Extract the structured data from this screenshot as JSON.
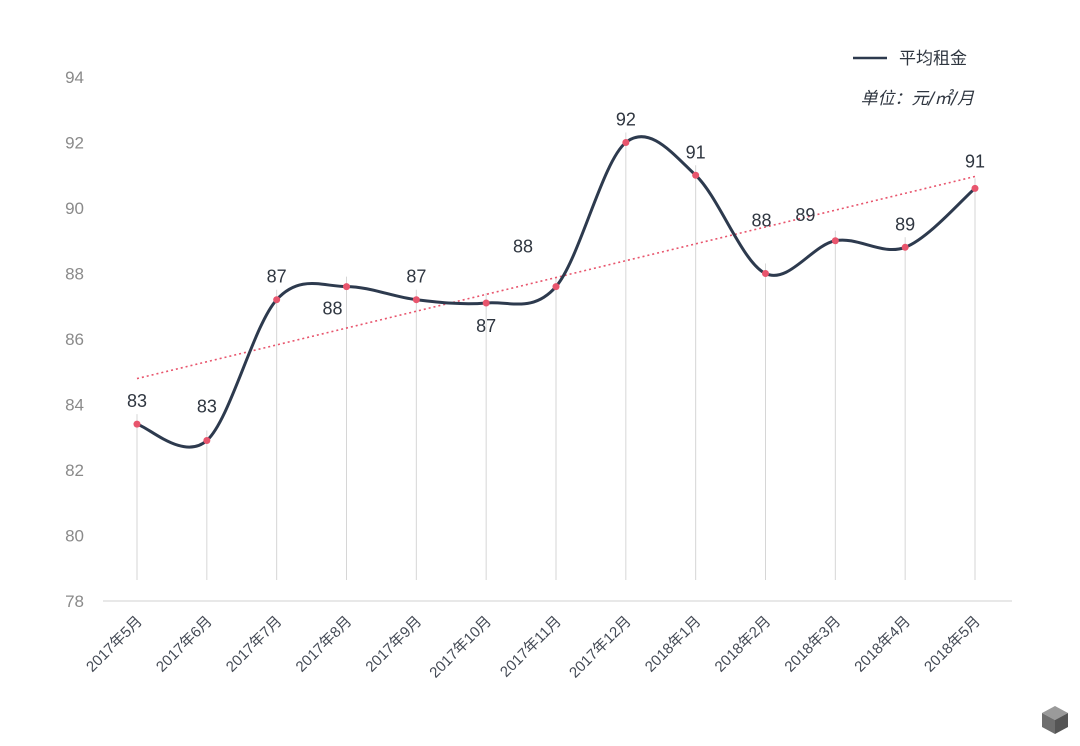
{
  "chart_data": {
    "type": "line",
    "categories": [
      "2017年5月",
      "2017年6月",
      "2017年7月",
      "2017年8月",
      "2017年9月",
      "2017年10月",
      "2017年11月",
      "2017年12月",
      "2018年1月",
      "2018年2月",
      "2018年3月",
      "2018年4月",
      "2018年5月"
    ],
    "series": [
      {
        "name": "平均租金",
        "values": [
          83.4,
          82.9,
          87.2,
          87.6,
          87.2,
          87.1,
          87.6,
          92.0,
          91.0,
          88.0,
          89.0,
          88.8,
          90.6
        ],
        "labels": [
          "83",
          "83",
          "87",
          "88",
          "87",
          "87",
          "88",
          "92",
          "91",
          "88",
          "89",
          "89",
          "91"
        ],
        "color": "#2d3a4e",
        "marker_color": "#e8556d",
        "smooth": true
      }
    ],
    "trendline": {
      "type": "linear",
      "style": "dotted",
      "color": "#e8556d"
    },
    "yticks": [
      78,
      80,
      82,
      84,
      86,
      88,
      90,
      92,
      94
    ],
    "ylim": [
      78,
      94
    ],
    "unit": "单位：元/㎡/月",
    "legend": "top-right",
    "drop_lines": true,
    "grid": false
  }
}
